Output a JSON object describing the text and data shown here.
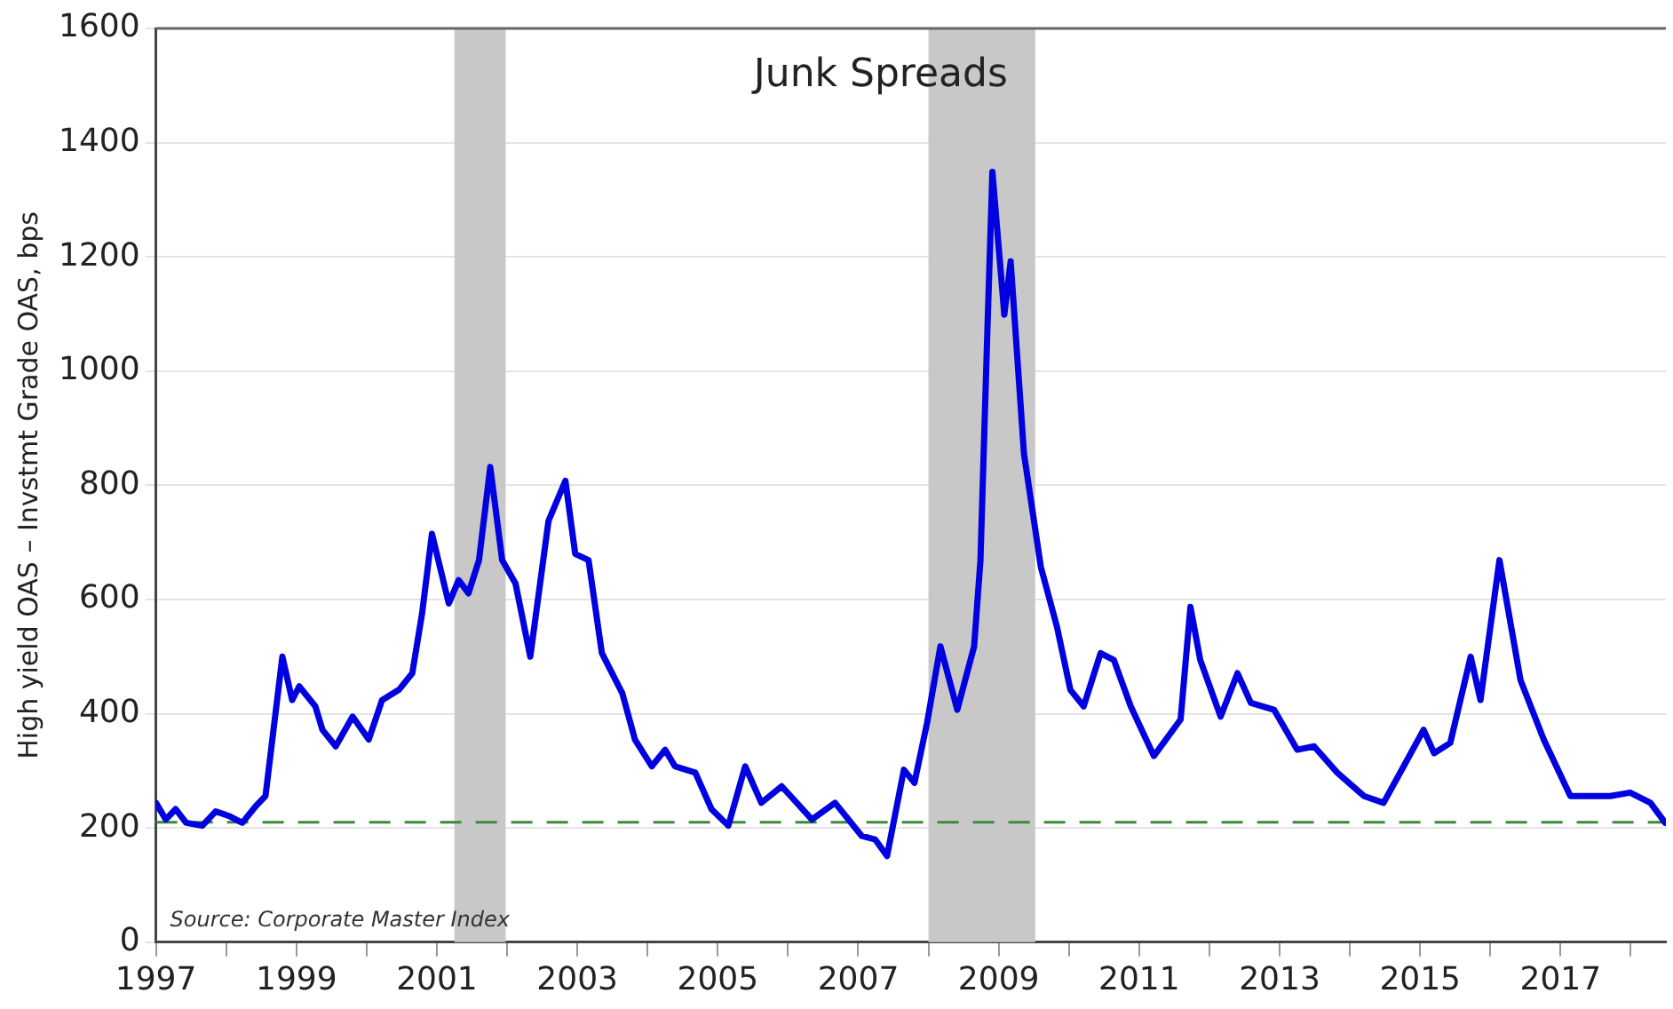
{
  "chart_data": {
    "type": "line",
    "title": "Junk Spreads",
    "ylabel": "High yield OAS – Invstmt Grade OAS, bps",
    "annotations": [
      "Source: Corporate Master Index"
    ],
    "series": [
      {
        "color": "#0000e0",
        "x": [
          1997.0,
          1997.14,
          1997.28,
          1997.43,
          1997.66,
          1997.85,
          1998.04,
          1998.23,
          1998.42,
          1998.56,
          1998.8,
          1998.94,
          1999.04,
          1999.27,
          1999.37,
          1999.56,
          1999.8,
          2000.03,
          2000.22,
          2000.46,
          2000.65,
          2000.79,
          2000.93,
          2001.17,
          2001.31,
          2001.45,
          2001.6,
          2001.76,
          2001.93,
          2002.12,
          2002.33,
          2002.59,
          2002.83,
          2002.97,
          2003.16,
          2003.35,
          2003.64,
          2003.82,
          2004.06,
          2004.25,
          2004.39,
          2004.68,
          2004.91,
          2005.15,
          2005.39,
          2005.62,
          2005.91,
          2006.34,
          2006.67,
          2007.05,
          2007.24,
          2007.41,
          2007.65,
          2007.8,
          2007.98,
          2008.17,
          2008.41,
          2008.65,
          2008.74,
          2008.84,
          2008.91,
          2009.08,
          2009.17,
          2009.36,
          2009.6,
          2009.83,
          2010.02,
          2010.21,
          2010.45,
          2010.64,
          2010.88,
          2011.21,
          2011.59,
          2011.73,
          2011.87,
          2012.16,
          2012.4,
          2012.59,
          2012.92,
          2013.25,
          2013.49,
          2013.82,
          2014.2,
          2014.48,
          2014.82,
          2015.05,
          2015.2,
          2015.43,
          2015.72,
          2015.86,
          2016.13,
          2016.43,
          2016.76,
          2017.14,
          2017.42,
          2017.71,
          2017.99,
          2018.28,
          2018.49
        ],
        "values": [
          244,
          215,
          233,
          209,
          204,
          229,
          221,
          209,
          238,
          256,
          500,
          424,
          448,
          413,
          372,
          343,
          395,
          355,
          424,
          442,
          471,
          576,
          715,
          593,
          634,
          611,
          669,
          832,
          669,
          628,
          500,
          738,
          808,
          680,
          669,
          506,
          436,
          355,
          308,
          337,
          308,
          297,
          233,
          204,
          308,
          244,
          273,
          215,
          244,
          186,
          180,
          151,
          302,
          279,
          384,
          518,
          407,
          518,
          669,
          1076,
          1349,
          1099,
          1192,
          855,
          657,
          552,
          442,
          413,
          506,
          494,
          413,
          326,
          390,
          587,
          494,
          395,
          471,
          419,
          407,
          337,
          343,
          297,
          256,
          244,
          320,
          372,
          331,
          349,
          500,
          424,
          669,
          459,
          355,
          256,
          256,
          256,
          262,
          244,
          209
        ]
      }
    ],
    "xlim": [
      1997,
      2018.5
    ],
    "xticks": [
      1997,
      {
        "value": 1998,
        "label": null
      },
      1999,
      {
        "value": 2000,
        "label": null
      },
      2001,
      {
        "value": 2002,
        "label": null
      },
      2003,
      {
        "value": 2004,
        "label": null
      },
      2005,
      {
        "value": 2006,
        "label": null
      },
      2007,
      {
        "value": 2008,
        "label": null
      },
      2009,
      {
        "value": 2010,
        "label": null
      },
      2011,
      {
        "value": 2012,
        "label": null
      },
      2013,
      {
        "value": 2014,
        "label": null
      },
      2015,
      {
        "value": 2016,
        "label": null
      },
      2017,
      {
        "value": 2018,
        "label": null
      }
    ],
    "ylim": [
      0,
      1600
    ],
    "yticks": [
      0,
      200,
      400,
      600,
      800,
      1000,
      1200,
      1400,
      1600
    ],
    "grid": "y",
    "legend": false,
    "marker": "none",
    "line_style": "solid",
    "bands": [
      {
        "axis": "x",
        "from": 2001.25,
        "to": 2001.98,
        "color": "#c8c8c8"
      },
      {
        "axis": "x",
        "from": 2008.0,
        "to": 2009.52,
        "color": "#c8c8c8"
      }
    ],
    "ref_lines": [
      {
        "axis": "y",
        "value": 210,
        "color": "#3a8a3a",
        "line_style": "dashed"
      }
    ]
  }
}
